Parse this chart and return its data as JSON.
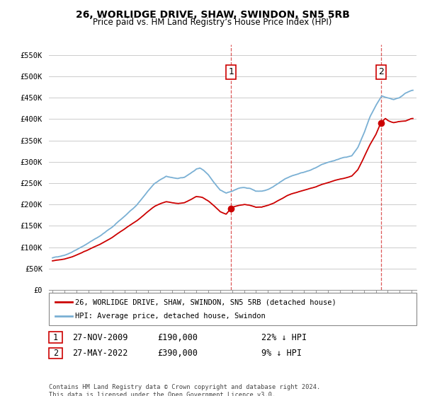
{
  "title": "26, WORLIDGE DRIVE, SHAW, SWINDON, SN5 5RB",
  "subtitle": "Price paid vs. HM Land Registry’s House Price Index (HPI)",
  "ylim": [
    0,
    575000
  ],
  "xlim_start": 1994.7,
  "xlim_end": 2025.4,
  "sale1_year": 2009.92,
  "sale1_price": 190000,
  "sale1_label": "1",
  "sale2_year": 2022.42,
  "sale2_price": 390000,
  "sale2_label": "2",
  "legend_line1": "26, WORLIDGE DRIVE, SHAW, SWINDON, SN5 5RB (detached house)",
  "legend_line2": "HPI: Average price, detached house, Swindon",
  "table_row1": [
    "1",
    "27-NOV-2009",
    "£190,000",
    "22% ↓ HPI"
  ],
  "table_row2": [
    "2",
    "27-MAY-2022",
    "£390,000",
    "9% ↓ HPI"
  ],
  "footnote": "Contains HM Land Registry data © Crown copyright and database right 2024.\nThis data is licensed under the Open Government Licence v3.0.",
  "line_color_red": "#cc0000",
  "line_color_blue": "#7ab0d4",
  "bg_color": "#ffffff",
  "grid_color": "#cccccc"
}
